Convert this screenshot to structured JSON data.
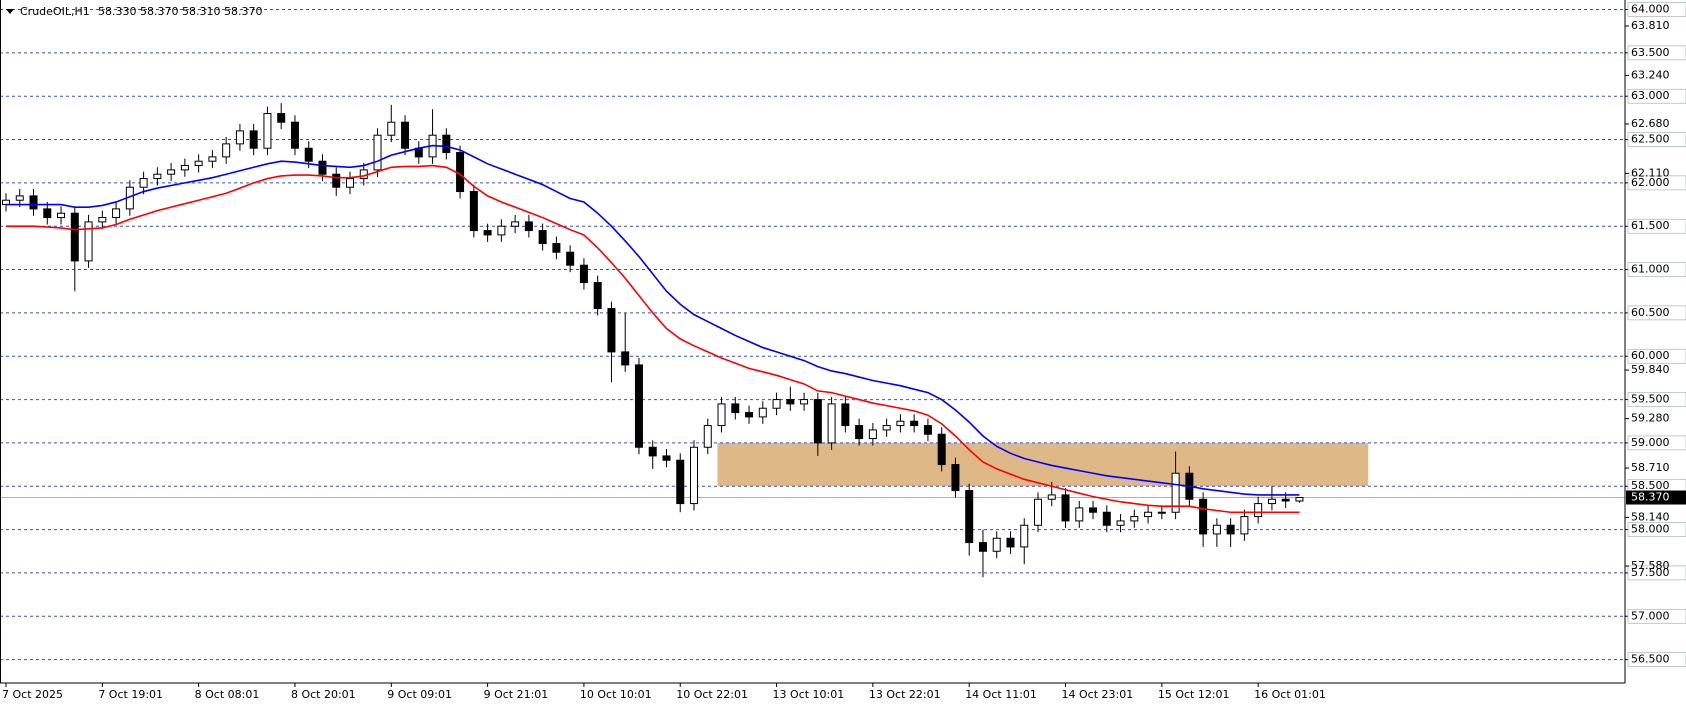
{
  "chart_data": {
    "type": "candlestick",
    "title": "CrudeOIL,H1",
    "subtitle": "58.330 58.370 58.310 58.370",
    "categories": [
      "7 Oct 2025",
      null,
      null,
      null,
      null,
      null,
      null,
      "7 Oct 19:01",
      null,
      null,
      null,
      null,
      null,
      null,
      "8 Oct 08:01",
      null,
      null,
      null,
      null,
      null,
      null,
      "8 Oct 20:01",
      null,
      null,
      null,
      null,
      null,
      null,
      "9 Oct 09:01",
      null,
      null,
      null,
      null,
      null,
      null,
      "9 Oct 21:01",
      null,
      null,
      null,
      null,
      null,
      null,
      "10 Oct 10:01",
      null,
      null,
      null,
      null,
      null,
      null,
      "10 Oct 22:01",
      null,
      null,
      null,
      null,
      null,
      null,
      "13 Oct 10:01",
      null,
      null,
      null,
      null,
      null,
      null,
      "13 Oct 22:01",
      null,
      null,
      null,
      null,
      null,
      null,
      "14 Oct 11:01",
      null,
      null,
      null,
      null,
      null,
      null,
      "14 Oct 23:01",
      null,
      null,
      null,
      null,
      null,
      null,
      "15 Oct 12:01",
      null,
      null,
      null,
      null,
      null,
      null,
      "16 Oct 01:01",
      null,
      null,
      null
    ],
    "open": [
      61.75,
      61.8,
      61.85,
      61.7,
      61.6,
      61.65,
      61.1,
      61.55,
      61.6,
      61.7,
      61.95,
      62.05,
      62.1,
      62.15,
      62.2,
      62.25,
      62.3,
      62.45,
      62.6,
      62.4,
      62.8,
      62.7,
      62.4,
      62.25,
      62.1,
      61.95,
      62.05,
      62.15,
      62.55,
      62.7,
      62.4,
      62.3,
      62.55,
      62.35,
      61.9,
      61.45,
      61.4,
      61.5,
      61.55,
      61.45,
      61.3,
      61.2,
      61.05,
      60.85,
      60.55,
      60.05,
      59.9,
      58.95,
      58.85,
      58.8,
      58.3,
      58.95,
      59.2,
      59.45,
      59.35,
      59.3,
      59.4,
      59.5,
      59.45,
      59.5,
      59.0,
      59.45,
      59.2,
      59.05,
      59.15,
      59.2,
      59.25,
      59.2,
      59.1,
      58.75,
      58.45,
      57.85,
      57.75,
      57.9,
      57.8,
      58.05,
      58.35,
      58.4,
      58.1,
      58.25,
      58.2,
      58.05,
      58.1,
      58.15,
      58.2,
      58.2,
      58.65,
      58.35,
      57.95,
      58.05,
      57.95,
      58.15,
      58.3,
      58.35,
      58.33
    ],
    "high": [
      61.88,
      61.93,
      61.93,
      61.78,
      61.73,
      61.73,
      61.63,
      61.68,
      61.78,
      62.03,
      62.13,
      62.18,
      62.23,
      62.28,
      62.33,
      62.38,
      62.53,
      62.68,
      62.68,
      62.88,
      62.92,
      62.78,
      62.48,
      62.33,
      62.18,
      62.13,
      62.23,
      62.63,
      62.9,
      62.78,
      62.48,
      62.85,
      62.63,
      62.43,
      61.98,
      61.53,
      61.58,
      61.63,
      61.63,
      61.53,
      61.38,
      61.28,
      61.13,
      60.93,
      60.63,
      60.5,
      59.98,
      59.03,
      58.93,
      58.88,
      59.03,
      59.28,
      59.53,
      59.53,
      59.43,
      59.48,
      59.58,
      59.65,
      59.58,
      59.58,
      59.53,
      59.53,
      59.28,
      59.23,
      59.28,
      59.33,
      59.33,
      59.28,
      59.18,
      58.83,
      58.53,
      58.0,
      57.98,
      57.98,
      58.13,
      58.43,
      58.55,
      58.48,
      58.33,
      58.33,
      58.28,
      58.18,
      58.23,
      58.28,
      58.28,
      58.9,
      58.73,
      58.43,
      58.13,
      58.13,
      58.23,
      58.38,
      58.5,
      58.43,
      58.37
    ],
    "low": [
      61.67,
      61.72,
      61.62,
      61.52,
      61.52,
      60.75,
      61.02,
      61.47,
      61.52,
      61.62,
      61.87,
      61.97,
      62.02,
      62.07,
      62.12,
      62.17,
      62.22,
      62.37,
      62.32,
      62.32,
      62.62,
      62.32,
      62.17,
      62.02,
      61.85,
      61.87,
      61.97,
      62.07,
      62.47,
      62.32,
      62.22,
      62.22,
      62.27,
      61.82,
      61.37,
      61.32,
      61.32,
      61.42,
      61.37,
      61.22,
      61.12,
      60.97,
      60.77,
      60.47,
      59.7,
      59.82,
      58.87,
      58.7,
      58.72,
      58.2,
      58.22,
      58.87,
      59.12,
      59.27,
      59.22,
      59.22,
      59.32,
      59.37,
      59.37,
      58.85,
      58.92,
      59.12,
      58.97,
      58.97,
      59.07,
      59.12,
      59.12,
      59.02,
      58.67,
      58.37,
      57.7,
      57.45,
      57.67,
      57.72,
      57.6,
      57.97,
      58.27,
      58.02,
      58.02,
      58.12,
      57.97,
      57.97,
      58.02,
      58.07,
      58.12,
      58.12,
      58.27,
      57.8,
      57.8,
      57.8,
      57.87,
      58.07,
      58.22,
      58.25,
      58.31
    ],
    "close": [
      61.8,
      61.85,
      61.7,
      61.6,
      61.65,
      61.1,
      61.55,
      61.6,
      61.7,
      61.95,
      62.05,
      62.1,
      62.15,
      62.2,
      62.25,
      62.3,
      62.45,
      62.6,
      62.4,
      62.8,
      62.7,
      62.4,
      62.25,
      62.1,
      61.95,
      62.05,
      62.15,
      62.55,
      62.7,
      62.4,
      62.3,
      62.55,
      62.35,
      61.9,
      61.45,
      61.4,
      61.5,
      61.55,
      61.45,
      61.3,
      61.2,
      61.05,
      60.85,
      60.55,
      60.05,
      59.9,
      58.95,
      58.85,
      58.8,
      58.3,
      58.95,
      59.2,
      59.45,
      59.35,
      59.3,
      59.4,
      59.5,
      59.45,
      59.5,
      59.0,
      59.45,
      59.2,
      59.05,
      59.15,
      59.2,
      59.25,
      59.2,
      59.1,
      58.75,
      58.45,
      57.85,
      57.75,
      57.9,
      57.8,
      58.05,
      58.35,
      58.4,
      58.1,
      58.25,
      58.2,
      58.05,
      58.1,
      58.15,
      58.2,
      58.2,
      58.65,
      58.35,
      57.95,
      58.05,
      57.95,
      58.15,
      58.3,
      58.35,
      58.33,
      58.37
    ],
    "up_color": "#ffffff",
    "down_color": "#000000",
    "lines": [
      {
        "color": "#0000ff",
        "values": [
          61.75,
          61.75,
          61.75,
          61.75,
          61.75,
          61.72,
          61.72,
          61.74,
          61.78,
          61.84,
          61.9,
          61.94,
          61.97,
          62.0,
          62.03,
          62.06,
          62.1,
          62.14,
          62.18,
          62.22,
          62.25,
          62.24,
          62.22,
          62.2,
          62.19,
          62.18,
          62.2,
          62.25,
          62.32,
          62.36,
          62.4,
          62.43,
          62.42,
          62.38,
          62.3,
          62.22,
          62.16,
          62.1,
          62.04,
          61.98,
          61.9,
          61.82,
          61.78,
          61.65,
          61.5,
          61.33,
          61.15,
          60.95,
          60.75,
          60.6,
          60.48,
          60.4,
          60.32,
          60.24,
          60.17,
          60.1,
          60.05,
          60.0,
          59.95,
          59.88,
          59.83,
          59.8,
          59.76,
          59.72,
          59.69,
          59.66,
          59.62,
          59.58,
          59.5,
          59.38,
          59.24,
          59.08,
          58.96,
          58.88,
          58.82,
          58.78,
          58.74,
          58.71,
          58.68,
          58.65,
          58.62,
          58.6,
          58.58,
          58.56,
          58.54,
          58.52,
          58.5,
          58.47,
          58.45,
          58.43,
          58.41,
          58.4,
          58.4,
          58.4,
          58.4
        ]
      },
      {
        "color": "#ff0000",
        "values": [
          61.5,
          61.5,
          61.5,
          61.49,
          61.48,
          61.46,
          61.47,
          61.48,
          61.52,
          61.58,
          61.63,
          61.68,
          61.72,
          61.76,
          61.8,
          61.84,
          61.88,
          61.94,
          62.0,
          62.05,
          62.08,
          62.09,
          62.09,
          62.08,
          62.06,
          62.06,
          62.08,
          62.13,
          62.18,
          62.19,
          62.19,
          62.2,
          62.18,
          62.1,
          61.96,
          61.85,
          61.78,
          61.72,
          61.66,
          61.6,
          61.53,
          61.46,
          61.4,
          61.25,
          61.08,
          60.9,
          60.7,
          60.5,
          60.32,
          60.2,
          60.12,
          60.05,
          59.98,
          59.92,
          59.86,
          59.82,
          59.78,
          59.73,
          59.68,
          59.6,
          59.58,
          59.54,
          59.5,
          59.46,
          59.43,
          59.4,
          59.37,
          59.32,
          59.22,
          59.08,
          58.92,
          58.78,
          58.7,
          58.64,
          58.58,
          58.54,
          58.5,
          58.46,
          58.42,
          58.38,
          58.35,
          58.32,
          58.3,
          58.28,
          58.27,
          58.27,
          58.27,
          58.24,
          58.22,
          58.2,
          58.2,
          58.2,
          58.2,
          58.2,
          58.2
        ]
      }
    ],
    "zone": {
      "low": 58.5,
      "high": 59.0,
      "from": 52,
      "to": 99,
      "color": "#deb887"
    },
    "last_price": {
      "value": 58.37,
      "label": "58.370"
    },
    "ylim": [
      56.23,
      64.11
    ],
    "yticks": [
      {
        "value": 64,
        "label": "64.000"
      },
      {
        "value": 63.5,
        "label": "63.500"
      },
      {
        "value": 63,
        "label": "63.000"
      },
      {
        "value": 62.5,
        "label": "62.500"
      },
      {
        "value": 62,
        "label": "62.000"
      },
      {
        "value": 61.5,
        "label": "61.500"
      },
      {
        "value": 61,
        "label": "61.000"
      },
      {
        "value": 60.5,
        "label": "60.500"
      },
      {
        "value": 60,
        "label": "60.000"
      },
      {
        "value": 59.5,
        "label": "59.500"
      },
      {
        "value": 59,
        "label": "59.000"
      },
      {
        "value": 58.5,
        "label": "58.500"
      },
      {
        "value": 58,
        "label": "58.000"
      },
      {
        "value": 57.5,
        "label": "57.500"
      },
      {
        "value": 57,
        "label": "57.000"
      },
      {
        "value": 56.5,
        "label": "56.500"
      }
    ],
    "minor_yticks": [
      {
        "value": 63.81,
        "label": "63.810"
      },
      {
        "value": 63.24,
        "label": "63.240"
      },
      {
        "value": 62.68,
        "label": "62.680"
      },
      {
        "value": 62.11,
        "label": "62.110"
      },
      {
        "value": 59.84,
        "label": "59.840"
      },
      {
        "value": 59.28,
        "label": "59.280"
      },
      {
        "value": 58.71,
        "label": "58.710"
      },
      {
        "value": 58.14,
        "label": "58.140"
      },
      {
        "value": 57.58,
        "label": "57.580"
      }
    ],
    "grid": true,
    "grid_color": "#3050c8"
  }
}
